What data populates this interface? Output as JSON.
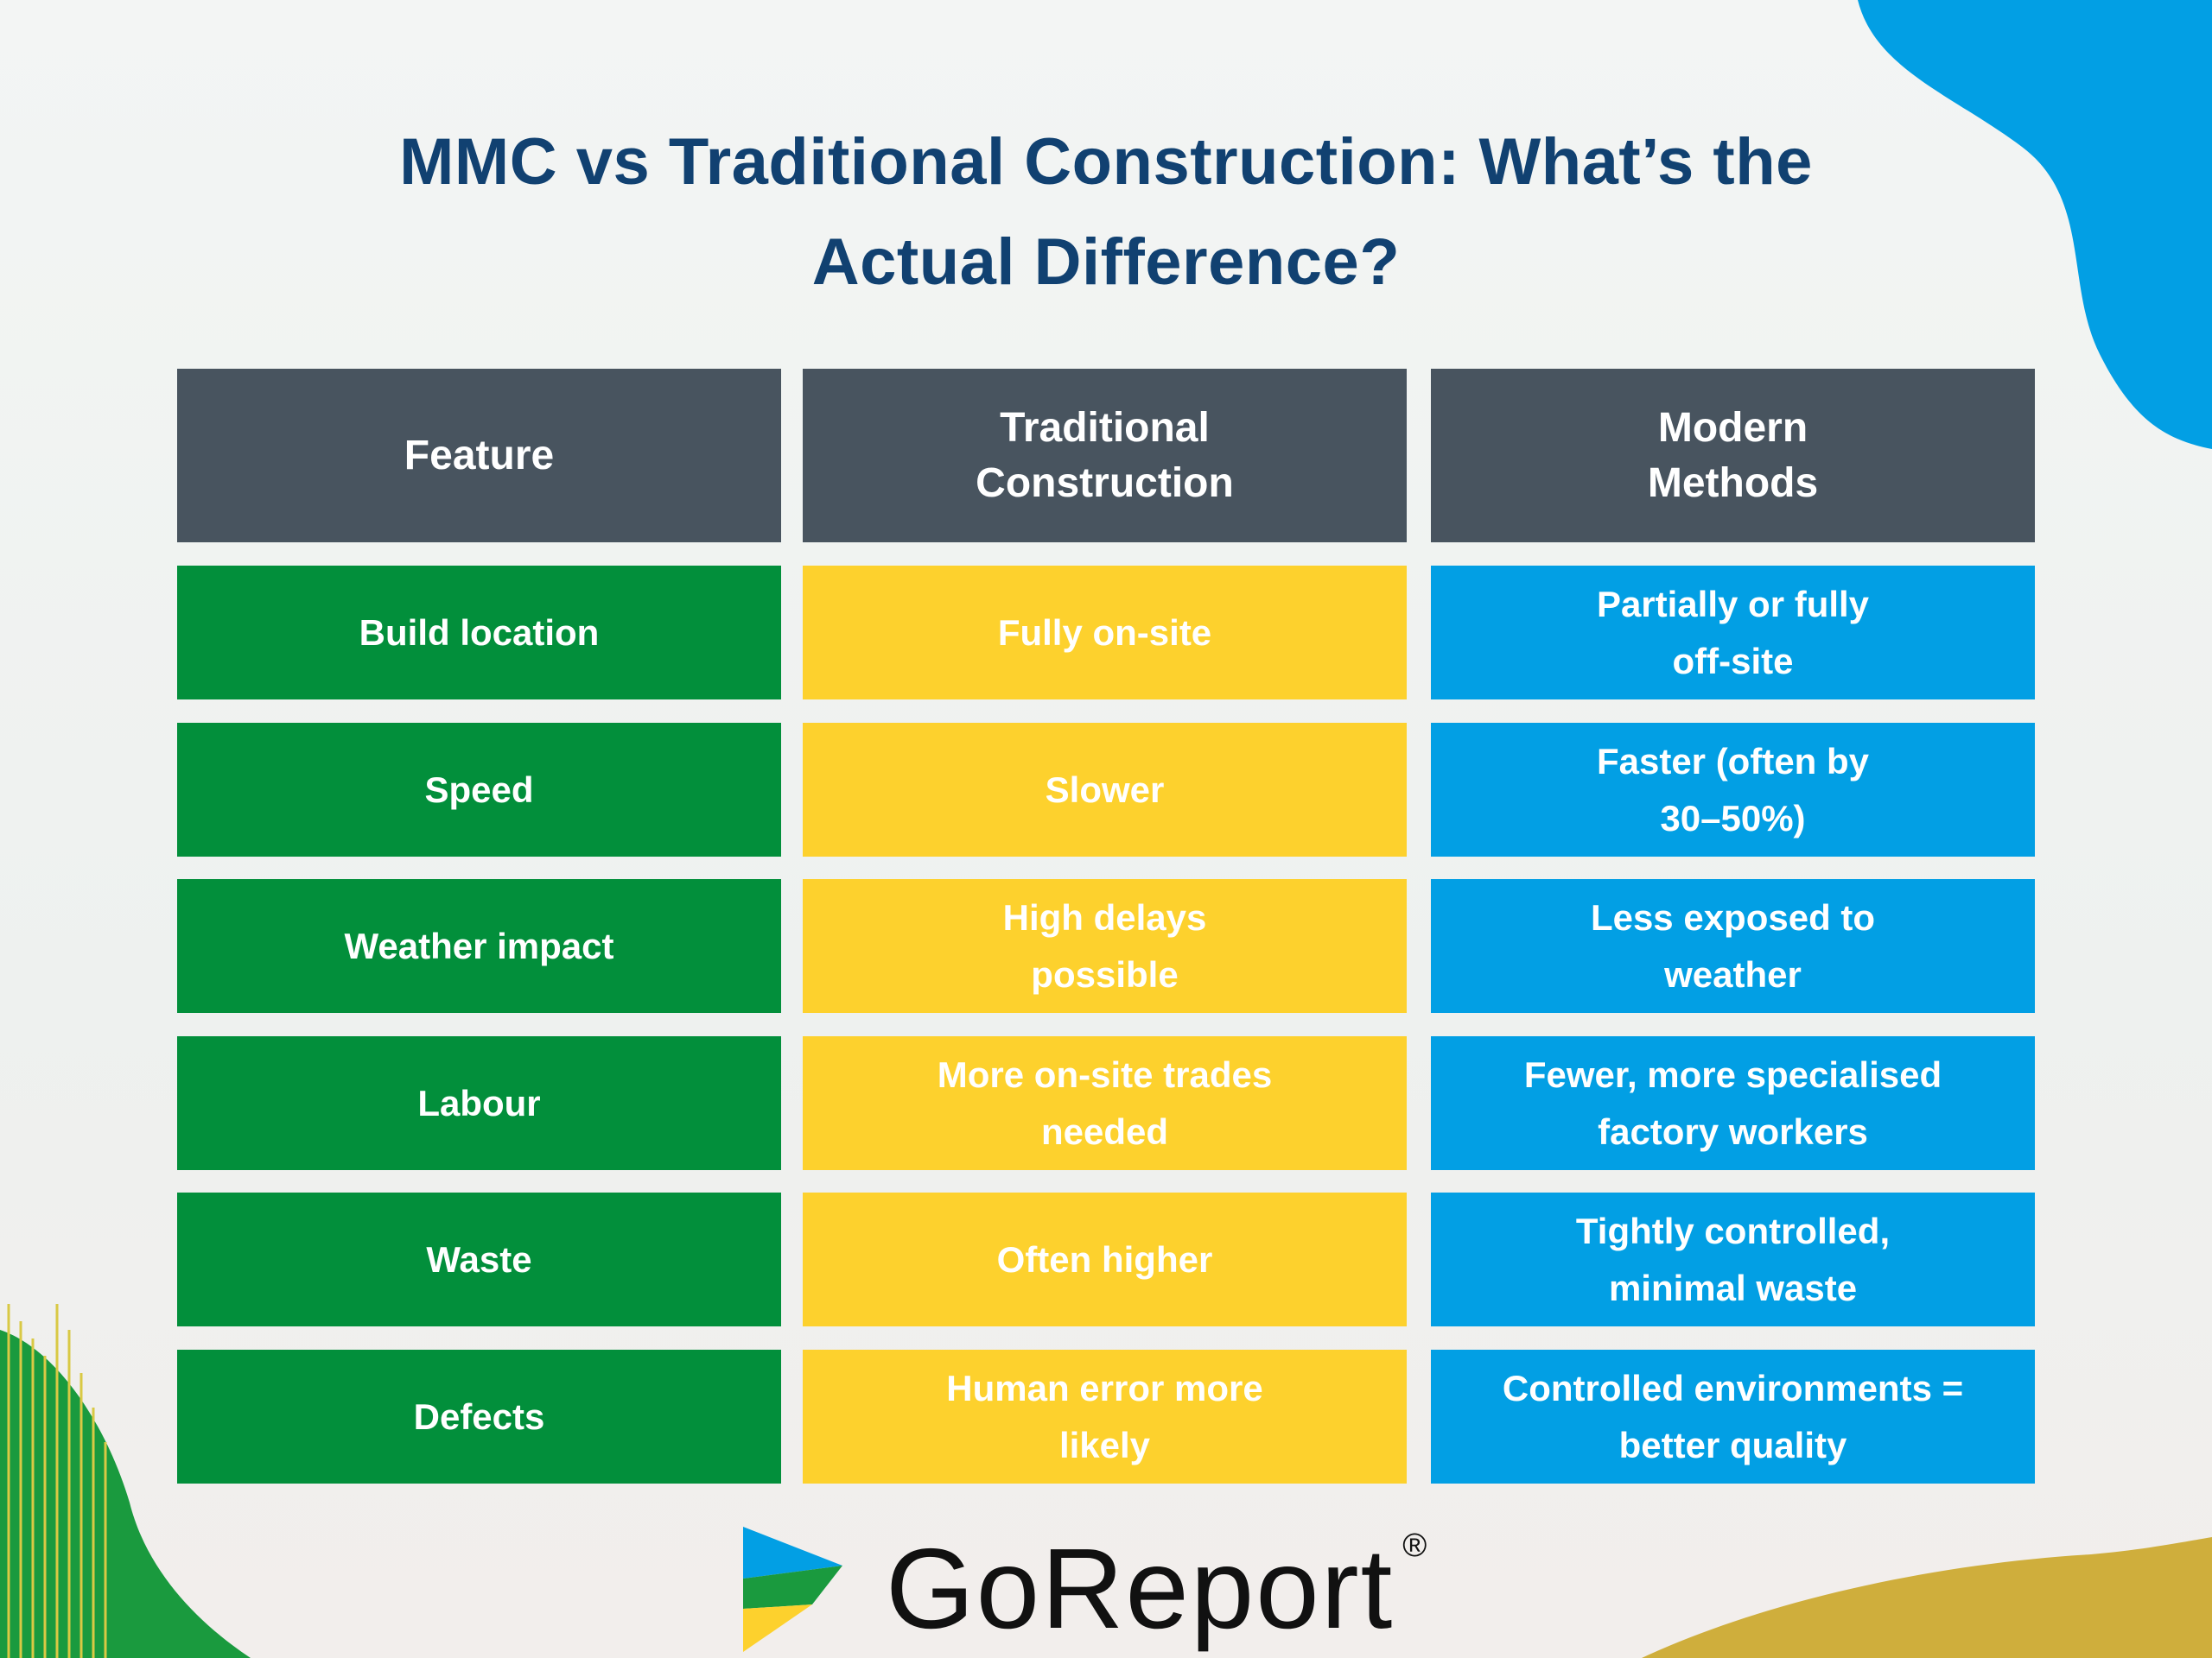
{
  "title": {
    "line1": "MMC vs Traditional Construction: What’s the",
    "line2": "Actual Difference?"
  },
  "table": {
    "headers": [
      [
        "Feature"
      ],
      [
        "Traditional",
        "Construction"
      ],
      [
        "Modern",
        "Methods"
      ]
    ],
    "rows": [
      {
        "feature": [
          "Build location"
        ],
        "traditional": [
          "Fully on-site"
        ],
        "modern": [
          "Partially or fully",
          "off-site"
        ]
      },
      {
        "feature": [
          "Speed"
        ],
        "traditional": [
          "Slower"
        ],
        "modern": [
          "Faster (often by",
          "30–50%)"
        ]
      },
      {
        "feature": [
          "Weather impact"
        ],
        "traditional": [
          "High delays",
          "possible"
        ],
        "modern": [
          "Less exposed to",
          "weather"
        ]
      },
      {
        "feature": [
          "Labour"
        ],
        "traditional": [
          "More on-site trades",
          "needed"
        ],
        "modern": [
          "Fewer, more specialised",
          "factory workers"
        ]
      },
      {
        "feature": [
          "Waste"
        ],
        "traditional": [
          "Often higher"
        ],
        "modern": [
          "Tightly controlled,",
          "minimal waste"
        ]
      },
      {
        "feature": [
          "Defects"
        ],
        "traditional": [
          "Human error more",
          "likely"
        ],
        "modern": [
          "Controlled environments =",
          "better quality"
        ]
      }
    ]
  },
  "brand": {
    "name": "GoReport",
    "registered_mark": "®",
    "logo_icon": "goreport-arrow-logo-icon"
  },
  "colors": {
    "title": "#114171",
    "header_bg": "#48545f",
    "feature_bg": "#028f3b",
    "traditional_bg": "#fdd12d",
    "modern_bg": "#029fe4",
    "text_on_cells": "#ffffff"
  }
}
